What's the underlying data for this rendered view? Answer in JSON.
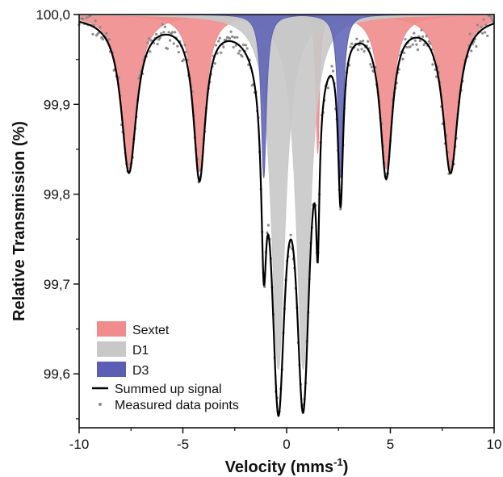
{
  "chart_data": {
    "type": "line",
    "xlabel": "Velocity (mms",
    "xlabel_sup": "-1",
    "xlabel_end": ")",
    "ylabel": "Relative Transmission (%)",
    "xlim": [
      -10,
      10
    ],
    "ylim": [
      99.54,
      100.0
    ],
    "x_ticks": [
      -10,
      -5,
      0,
      5,
      10
    ],
    "x_tick_labels": [
      "-10",
      "-5",
      "0",
      "5",
      "10"
    ],
    "y_ticks": [
      99.6,
      99.7,
      99.8,
      99.9,
      100.0
    ],
    "y_tick_labels": [
      "99,6",
      "99,7",
      "99,8",
      "99,9",
      "100,0"
    ],
    "grid": false,
    "legend_position": "bottom-left",
    "legend": [
      {
        "label": "Sextet",
        "kind": "fill",
        "color": "#f08c8c"
      },
      {
        "label": "D1",
        "kind": "fill",
        "color": "#c8c8c8"
      },
      {
        "label": "D3",
        "kind": "fill",
        "color": "#5a5fb5"
      },
      {
        "label": "Summed up signal",
        "kind": "line",
        "color": "#000000"
      },
      {
        "label": "Measured data points",
        "kind": "marker",
        "color": "#8a8a8a"
      }
    ],
    "series": [
      {
        "name": "Sextet",
        "color": "#f08c8c",
        "peaks": [
          {
            "center": -7.6,
            "depth": 0.172,
            "width": 0.45
          },
          {
            "center": -4.2,
            "depth": 0.175,
            "width": 0.35
          },
          {
            "center": 1.5,
            "depth": 0.155,
            "width": 0.1
          },
          {
            "center": 4.8,
            "depth": 0.172,
            "width": 0.35
          },
          {
            "center": 7.9,
            "depth": 0.172,
            "width": 0.45
          }
        ]
      },
      {
        "name": "D1",
        "color": "#c8c8c8",
        "peaks": [
          {
            "center": -0.4,
            "depth": 0.395,
            "width": 0.4
          },
          {
            "center": 0.8,
            "depth": 0.395,
            "width": 0.4
          }
        ]
      },
      {
        "name": "D3",
        "color": "#5a5fb5",
        "peaks": [
          {
            "center": -1.1,
            "depth": 0.182,
            "width": 0.15
          },
          {
            "center": 2.6,
            "depth": 0.182,
            "width": 0.15
          }
        ]
      }
    ]
  }
}
